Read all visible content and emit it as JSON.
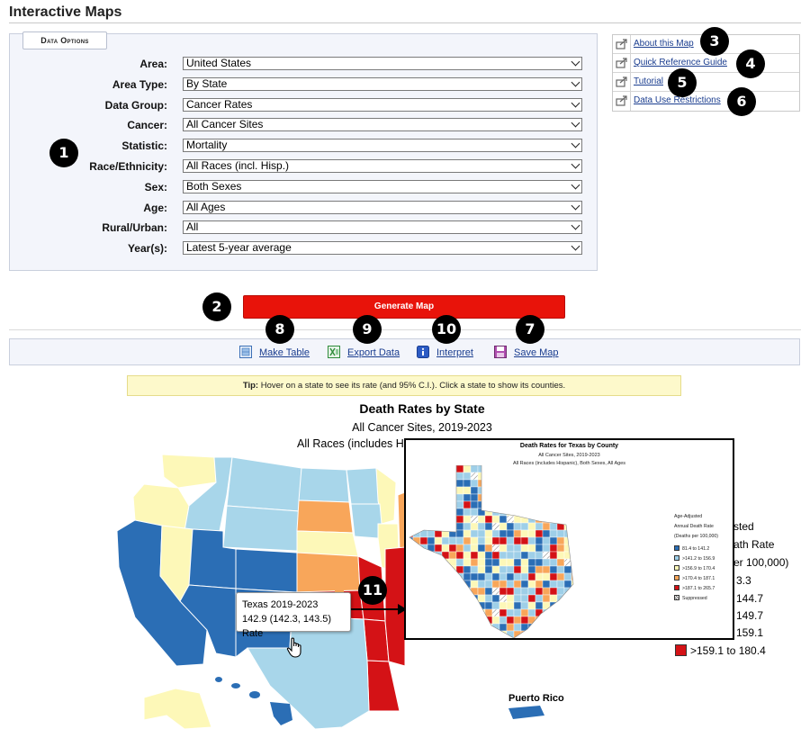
{
  "page": {
    "title": "Interactive Maps"
  },
  "data_options": {
    "tab_label": "Data Options",
    "fields": [
      {
        "label": "Area:",
        "value": "United States"
      },
      {
        "label": "Area Type:",
        "value": "By State"
      },
      {
        "label": "Data Group:",
        "value": "Cancer Rates"
      },
      {
        "label": "Cancer:",
        "value": "All Cancer Sites"
      },
      {
        "label": "Statistic:",
        "value": "Mortality"
      },
      {
        "label": "Race/Ethnicity:",
        "value": "All Races (incl. Hisp.)"
      },
      {
        "label": "Sex:",
        "value": "Both Sexes"
      },
      {
        "label": "Age:",
        "value": "All Ages"
      },
      {
        "label": "Rural/Urban:",
        "value": "All"
      },
      {
        "label": "Year(s):",
        "value": "Latest 5-year average"
      }
    ]
  },
  "side_links": [
    {
      "label": "About this Map"
    },
    {
      "label": "Quick Reference Guide"
    },
    {
      "label": "Tutorial"
    },
    {
      "label": "Data Use Restrictions"
    }
  ],
  "generate_label": "Generate Map",
  "toolbar": {
    "make_table": "Make Table",
    "export_data": "Export Data",
    "interpret": "Interpret",
    "save_map": "Save Map"
  },
  "tip": {
    "bold": "Tip:",
    "text": " Hover on a state to see its rate (and 95% C.I.).  Click a state to show its counties."
  },
  "map": {
    "title": "Death Rates by State",
    "subtitle1": "All Cancer Sites, 2019-2023",
    "subtitle2": "All Races (includes His",
    "puerto_rico": "Puerto Rico",
    "legend_fragments": [
      "sted",
      "ath Rate",
      "er 100,000)",
      "3.3",
      "144.7",
      "149.7",
      "159.1"
    ],
    "legend_last": ">159.1 to 180.4"
  },
  "tooltip": {
    "line1": "Texas 2019-2023",
    "line2": "142.9 (142.3, 143.5) Rate"
  },
  "inset": {
    "title": "Death Rates for Texas by County",
    "subtitle1": "All Cancer Sites, 2019-2023",
    "subtitle2": "All Races (includes Hispanic), Both Sexes, All Ages",
    "legend_title": [
      "Age-Adjusted",
      "Annual Death Rate",
      "(Deaths per 100,000)"
    ],
    "legend_items": [
      {
        "label": "81.4 to 141.2",
        "color": "#2b6eb5"
      },
      {
        "label": ">141.2 to 156.9",
        "color": "#9ecfe8"
      },
      {
        "label": ">156.9 to 170.4",
        "color": "#fdf8b8"
      },
      {
        "label": ">170.4 to 187.1",
        "color": "#f8a65a"
      },
      {
        "label": ">187.1 to 265.7",
        "color": "#d41216"
      },
      {
        "label": "Suppressed",
        "color": "hatched"
      }
    ]
  },
  "badges": [
    "1",
    "2",
    "3",
    "4",
    "5",
    "6",
    "7",
    "8",
    "9",
    "10",
    "11"
  ],
  "colors": {
    "generate_button": "#e8130a",
    "link": "#1a3d8f",
    "map_dark_blue": "#2b6eb5",
    "map_light_blue": "#a8d6ea",
    "map_yellow": "#fdf8b8",
    "map_orange": "#f8a65a",
    "map_red": "#d41216"
  }
}
